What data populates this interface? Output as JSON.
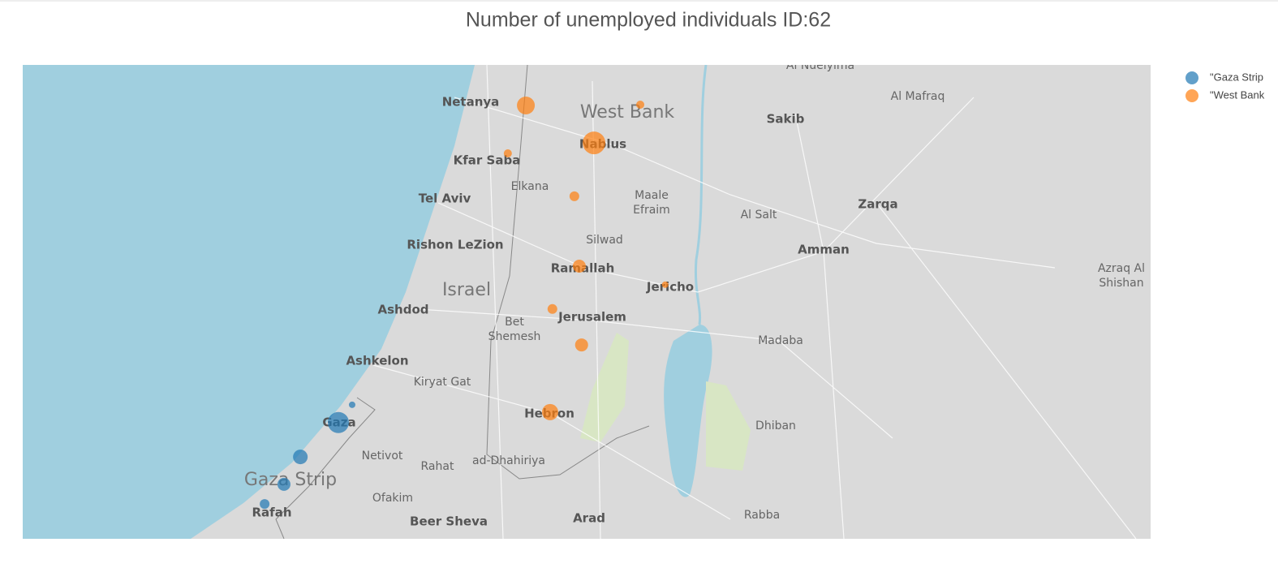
{
  "chart_data": {
    "type": "scattermap",
    "title": "Number of unemployed individuals ID:62",
    "map_bounds": {
      "lon": [
        33.487,
        36.928
      ],
      "lat": [
        31.197,
        32.424
      ]
    },
    "series": [
      {
        "name": "\"Gaza Strip",
        "color": "#1f77b4",
        "lon": [
          34.45,
          34.334,
          34.284,
          34.225,
          34.492
        ],
        "lat": [
          31.498,
          31.409,
          31.338,
          31.287,
          31.544
        ],
        "values": [
          17000,
          8100,
          6400,
          3600,
          1600
        ]
      },
      {
        "name": "\"West Bank",
        "color": "#ff7f0e",
        "lon": [
          35.022,
          35.371,
          35.23,
          34.967,
          35.17,
          35.185,
          35.447,
          35.103,
          35.192,
          35.096
        ],
        "lat": [
          32.319,
          32.321,
          32.222,
          32.195,
          32.084,
          31.903,
          31.855,
          31.792,
          31.699,
          31.525
        ],
        "values": [
          12100,
          2500,
          19600,
          2500,
          3600,
          6400,
          1600,
          3600,
          6400,
          10000
        ]
      }
    ],
    "map_labels": [
      "Al Nueiyima",
      "Netanya",
      "West Bank",
      "Al Mafraq",
      "Sakib",
      "Nablus",
      "Kfar Saba",
      "Elkana",
      "Tel Aviv",
      "Maale",
      "Efraim",
      "Zarqa",
      "Al Salt",
      "Silwad",
      "Rishon LeZion",
      "Amman",
      "Ramallah",
      "Azraq Al",
      "Shishan",
      "Israel",
      "Jericho",
      "Ashdod",
      "Jerusalem",
      "Bet",
      "Shemesh",
      "Madaba",
      "Ashkelon",
      "Kiryat Gat",
      "Hebron",
      "Gaza",
      "Dhiban",
      "Netivot",
      "Rahat",
      "ad-Dhahiriya",
      "Gaza Strip",
      "Ofakim",
      "Rafah",
      "Beer Sheva",
      "Arad",
      "Rabba"
    ]
  }
}
